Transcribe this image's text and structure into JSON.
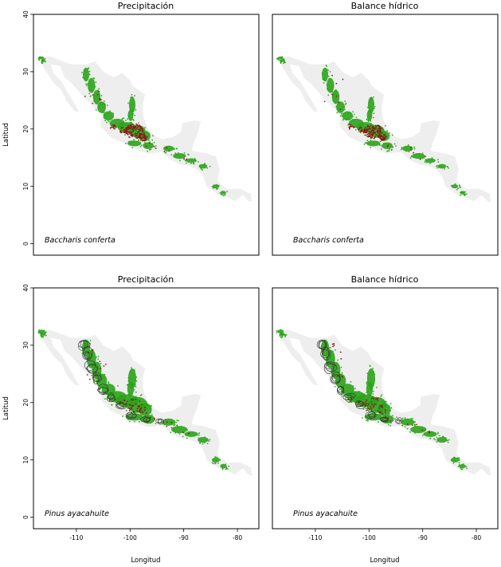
{
  "figure": {
    "xlabel": "Longitud",
    "ylabel": "Latitud",
    "x_ticks": [
      -110,
      -100,
      -90,
      -80
    ],
    "x_tick_labels": [
      "-110",
      "-100",
      "-90",
      "-80"
    ],
    "y_ticks": [
      0,
      10,
      20,
      30,
      40
    ],
    "y_tick_labels": [
      "0",
      "10",
      "20",
      "30",
      "40"
    ],
    "xlim": [
      -118,
      -76
    ],
    "ylim": [
      -2,
      40
    ],
    "colors": {
      "region": "#eeeeee",
      "suitable": "#2aa31a",
      "occurrence": "#8b1a1a",
      "contour": "#333333",
      "frame": "#000000"
    }
  },
  "panels": [
    {
      "title": "Precipitación",
      "species": "Baccharis conferta",
      "contours": false
    },
    {
      "title": "Balance hídrico",
      "species": "Baccharis conferta",
      "contours": false
    },
    {
      "title": "Precipitación",
      "species": "Pinus ayacahuite",
      "contours": true
    },
    {
      "title": "Balance hídrico",
      "species": "Pinus ayacahuite",
      "contours": true
    }
  ],
  "map_layers": {
    "region_outline": [
      [
        -117,
        32.5
      ],
      [
        -115,
        32.7
      ],
      [
        -111,
        31.3
      ],
      [
        -108,
        31.3
      ],
      [
        -106.5,
        31.8
      ],
      [
        -105,
        30
      ],
      [
        -103,
        29
      ],
      [
        -101.5,
        29.8
      ],
      [
        -100,
        28.5
      ],
      [
        -99.5,
        27.5
      ],
      [
        -97.2,
        26
      ],
      [
        -97.7,
        24
      ],
      [
        -97.5,
        22
      ],
      [
        -96.5,
        19.8
      ],
      [
        -95,
        18.6
      ],
      [
        -94,
        18.2
      ],
      [
        -92,
        18.6
      ],
      [
        -90.5,
        19.5
      ],
      [
        -90.3,
        21
      ],
      [
        -88,
        21.5
      ],
      [
        -86.8,
        21.3
      ],
      [
        -87.5,
        19
      ],
      [
        -88.2,
        17.5
      ],
      [
        -88.5,
        16.2
      ],
      [
        -86,
        15.8
      ],
      [
        -84,
        15.2
      ],
      [
        -83.3,
        13
      ],
      [
        -83.7,
        11
      ],
      [
        -82,
        9.5
      ],
      [
        -79.5,
        9.6
      ],
      [
        -77.5,
        8.7
      ],
      [
        -77.3,
        7.2
      ],
      [
        -78,
        7.5
      ],
      [
        -79,
        8.5
      ],
      [
        -80.5,
        7.4
      ],
      [
        -82,
        8.2
      ],
      [
        -83.5,
        8.5
      ],
      [
        -85.7,
        10
      ],
      [
        -86.5,
        12
      ],
      [
        -87.5,
        13
      ],
      [
        -89,
        13.5
      ],
      [
        -90.5,
        13.8
      ],
      [
        -92.2,
        14.5
      ],
      [
        -94,
        16
      ],
      [
        -96.5,
        15.7
      ],
      [
        -98.5,
        16.3
      ],
      [
        -101,
        17.5
      ],
      [
        -103.5,
        18.5
      ],
      [
        -105.5,
        20.5
      ],
      [
        -105.3,
        22.5
      ],
      [
        -106.5,
        23.5
      ],
      [
        -108,
        25
      ],
      [
        -109.3,
        26.3
      ],
      [
        -110.8,
        27.9
      ],
      [
        -112.2,
        29
      ],
      [
        -113,
        31
      ],
      [
        -114.8,
        31.3
      ],
      [
        -114.3,
        29.8
      ],
      [
        -112.8,
        28.3
      ],
      [
        -112,
        27
      ],
      [
        -110.2,
        24.2
      ],
      [
        -109.5,
        23
      ],
      [
        -110.3,
        23.1
      ],
      [
        -111.8,
        24.8
      ],
      [
        -112.8,
        26.8
      ],
      [
        -114.2,
        28
      ],
      [
        -115.5,
        29.8
      ],
      [
        -116.6,
        31.5
      ],
      [
        -117,
        32.5
      ]
    ],
    "suitable_blobs": [
      {
        "lon": -116.5,
        "lat": 32.4,
        "rx": 0.5,
        "ry": 0.25
      },
      {
        "lon": -116.2,
        "lat": 31.9,
        "rx": 0.4,
        "ry": 0.25
      },
      {
        "lon": -108.2,
        "lat": 29.5,
        "rx": 0.6,
        "ry": 1.2
      },
      {
        "lon": -107.2,
        "lat": 27.6,
        "rx": 0.7,
        "ry": 1.3
      },
      {
        "lon": -106.2,
        "lat": 25.6,
        "rx": 0.7,
        "ry": 1.2
      },
      {
        "lon": -105.3,
        "lat": 23.8,
        "rx": 0.8,
        "ry": 1.0
      },
      {
        "lon": -104.0,
        "lat": 22.3,
        "rx": 1.0,
        "ry": 0.8
      },
      {
        "lon": -102.4,
        "lat": 21.0,
        "rx": 1.4,
        "ry": 0.8
      },
      {
        "lon": -100.6,
        "lat": 20.3,
        "rx": 1.7,
        "ry": 0.9
      },
      {
        "lon": -98.6,
        "lat": 19.6,
        "rx": 1.5,
        "ry": 1.1
      },
      {
        "lon": -97.2,
        "lat": 18.8,
        "rx": 1.0,
        "ry": 0.9
      },
      {
        "lon": -99.6,
        "lat": 24.2,
        "rx": 0.6,
        "ry": 1.4
      },
      {
        "lon": -99.9,
        "lat": 22.4,
        "rx": 0.5,
        "ry": 1.0
      },
      {
        "lon": -99.2,
        "lat": 17.5,
        "rx": 1.3,
        "ry": 0.5
      },
      {
        "lon": -96.6,
        "lat": 17.1,
        "rx": 1.0,
        "ry": 0.6
      },
      {
        "lon": -92.8,
        "lat": 16.6,
        "rx": 1.0,
        "ry": 0.5
      },
      {
        "lon": -90.8,
        "lat": 15.3,
        "rx": 1.2,
        "ry": 0.5
      },
      {
        "lon": -88.6,
        "lat": 14.5,
        "rx": 1.0,
        "ry": 0.4
      },
      {
        "lon": -86.4,
        "lat": 13.5,
        "rx": 0.8,
        "ry": 0.4
      },
      {
        "lon": -84.0,
        "lat": 10.0,
        "rx": 0.6,
        "ry": 0.35
      },
      {
        "lon": -82.6,
        "lat": 8.9,
        "rx": 0.5,
        "ry": 0.3
      }
    ],
    "occurrence_clusters": [
      {
        "lon": -99.2,
        "lat": 19.6,
        "rx": 1.7,
        "ry": 1.3,
        "n": 110
      },
      {
        "lon": -97.6,
        "lat": 18.6,
        "rx": 0.8,
        "ry": 0.7,
        "n": 45
      },
      {
        "lon": -101.0,
        "lat": 19.8,
        "rx": 1.0,
        "ry": 0.6,
        "n": 30
      },
      {
        "lon": -103.3,
        "lat": 20.4,
        "rx": 0.8,
        "ry": 0.5,
        "n": 12
      },
      {
        "lon": -106.5,
        "lat": 26.5,
        "rx": 2.0,
        "ry": 4.0,
        "n": 40
      },
      {
        "lon": -96.4,
        "lat": 17.1,
        "rx": 1.0,
        "ry": 0.5,
        "n": 14
      },
      {
        "lon": -92.5,
        "lat": 16.3,
        "rx": 1.5,
        "ry": 0.6,
        "n": 16
      },
      {
        "lon": -89.5,
        "lat": 14.8,
        "rx": 1.5,
        "ry": 0.5,
        "n": 10
      }
    ],
    "contour_rings": [
      {
        "lon": -108.8,
        "lat": 30.2,
        "rx": 0.9,
        "ry": 0.8
      },
      {
        "lon": -108.0,
        "lat": 28.4,
        "rx": 0.7,
        "ry": 1.0
      },
      {
        "lon": -107.2,
        "lat": 26.2,
        "rx": 0.9,
        "ry": 1.0
      },
      {
        "lon": -106.3,
        "lat": 24.2,
        "rx": 0.8,
        "ry": 0.9
      },
      {
        "lon": -105.2,
        "lat": 22.3,
        "rx": 0.9,
        "ry": 0.7
      },
      {
        "lon": -103.7,
        "lat": 21.0,
        "rx": 0.9,
        "ry": 0.6
      },
      {
        "lon": -101.8,
        "lat": 19.5,
        "rx": 1.0,
        "ry": 0.5
      },
      {
        "lon": -99.7,
        "lat": 17.8,
        "rx": 0.9,
        "ry": 0.5
      },
      {
        "lon": -97.2,
        "lat": 17.2,
        "rx": 0.8,
        "ry": 0.4
      },
      {
        "lon": -94.5,
        "lat": 16.8,
        "rx": 0.6,
        "ry": 0.4
      }
    ]
  }
}
